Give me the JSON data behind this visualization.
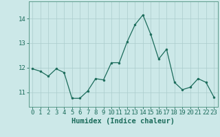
{
  "x": [
    0,
    1,
    2,
    3,
    4,
    5,
    6,
    7,
    8,
    9,
    10,
    11,
    12,
    13,
    14,
    15,
    16,
    17,
    18,
    19,
    20,
    21,
    22,
    23
  ],
  "y": [
    11.95,
    11.85,
    11.65,
    11.95,
    11.8,
    10.75,
    10.75,
    11.05,
    11.55,
    11.5,
    12.2,
    12.2,
    13.05,
    13.75,
    14.15,
    13.35,
    12.35,
    12.75,
    11.4,
    11.1,
    11.2,
    11.55,
    11.4,
    10.8
  ],
  "line_color": "#1a6b5a",
  "marker": "o",
  "marker_size": 2.0,
  "bg_color": "#cce8e8",
  "grid_color": "#aacccc",
  "xlabel": "Humidex (Indice chaleur)",
  "xlabel_fontsize": 7.5,
  "yticks": [
    11,
    12,
    13,
    14
  ],
  "ylim": [
    10.4,
    14.7
  ],
  "xlim": [
    -0.5,
    23.5
  ],
  "tick_color": "#1a6b5a",
  "tick_fontsize": 6.5,
  "spine_color": "#5a9a8a",
  "fig_bg": "#cce8e8"
}
